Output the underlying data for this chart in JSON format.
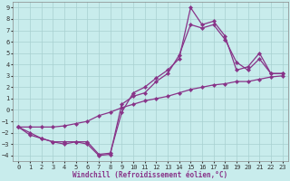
{
  "bg_color": "#c8ecec",
  "grid_color": "#a8d0d0",
  "line_color": "#883388",
  "xlabel": "Windchill (Refroidissement éolien,°C)",
  "xlim": [
    -0.5,
    23.5
  ],
  "ylim": [
    -4.5,
    9.5
  ],
  "xticks": [
    0,
    1,
    2,
    3,
    4,
    5,
    6,
    7,
    8,
    9,
    10,
    11,
    12,
    13,
    14,
    15,
    16,
    17,
    18,
    19,
    20,
    21,
    22,
    23
  ],
  "yticks": [
    -4,
    -3,
    -2,
    -1,
    0,
    1,
    2,
    3,
    4,
    5,
    6,
    7,
    8,
    9
  ],
  "line1_x": [
    0,
    1,
    2,
    3,
    4,
    5,
    6,
    7,
    8,
    9,
    10,
    11,
    12,
    13,
    14,
    15,
    16,
    17,
    18,
    19,
    20,
    21,
    22,
    23
  ],
  "line1_y": [
    -1.5,
    -2.2,
    -2.5,
    -2.8,
    -2.8,
    -2.8,
    -2.8,
    -3.9,
    -3.8,
    -0.2,
    1.5,
    2.0,
    2.8,
    3.5,
    4.5,
    9.0,
    7.5,
    7.8,
    6.5,
    3.5,
    3.8,
    5.0,
    3.2,
    3.2
  ],
  "line2_x": [
    0,
    1,
    2,
    3,
    4,
    5,
    6,
    7,
    8,
    9,
    10,
    11,
    12,
    13,
    14,
    15,
    16,
    17,
    18,
    19,
    20,
    21,
    22,
    23
  ],
  "line2_y": [
    -1.5,
    -2.0,
    -2.5,
    -2.8,
    -3.0,
    -2.8,
    -3.0,
    -4.0,
    -3.9,
    0.5,
    1.2,
    1.5,
    2.5,
    3.2,
    4.8,
    7.5,
    7.2,
    7.5,
    6.2,
    4.2,
    3.5,
    4.5,
    3.2,
    3.2
  ],
  "line3_x": [
    0,
    1,
    2,
    3,
    4,
    5,
    6,
    7,
    8,
    9,
    10,
    11,
    12,
    13,
    14,
    15,
    16,
    17,
    18,
    19,
    20,
    21,
    22,
    23
  ],
  "line3_y": [
    -1.5,
    -1.5,
    -1.5,
    -1.5,
    -1.4,
    -1.2,
    -1.0,
    -0.5,
    -0.2,
    0.2,
    0.5,
    0.8,
    1.0,
    1.2,
    1.5,
    1.8,
    2.0,
    2.2,
    2.3,
    2.5,
    2.5,
    2.7,
    2.9,
    3.0
  ],
  "markersize": 2.2,
  "linewidth": 0.9,
  "tick_fontsize": 5.0,
  "xlabel_fontsize": 5.5
}
